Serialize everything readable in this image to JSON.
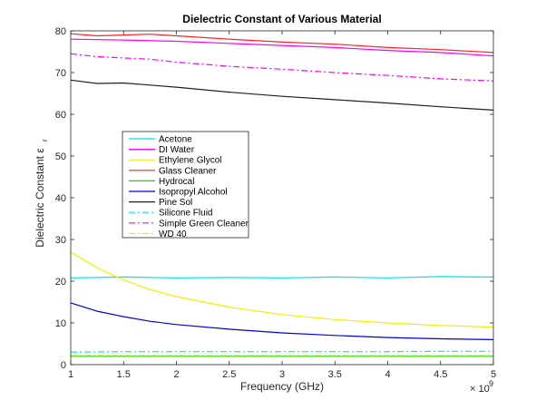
{
  "chart_data": {
    "type": "line",
    "title": "Dielectric Constant of Various Material",
    "xlabel": "Frequency (GHz)",
    "ylabel": "Dielectric Constant ε",
    "ylabel_subscript": "r",
    "x_exponent_base": "× 10",
    "x_exponent_power": "9",
    "xlim": [
      1,
      5
    ],
    "ylim": [
      0,
      80
    ],
    "xticks": [
      1,
      1.5,
      2,
      2.5,
      3,
      3.5,
      4,
      4.5,
      5
    ],
    "xtick_labels": [
      "1",
      "1.5",
      "2",
      "2.5",
      "3",
      "3.5",
      "4",
      "4.5",
      "5"
    ],
    "yticks": [
      0,
      10,
      20,
      30,
      40,
      50,
      60,
      70,
      80
    ],
    "ytick_labels": [
      "0",
      "10",
      "20",
      "30",
      "40",
      "50",
      "60",
      "70",
      "80"
    ],
    "legend_position": "upper-left",
    "series": [
      {
        "name": "Acetone",
        "color": "#00e5e5",
        "dash": "solid",
        "x": [
          1,
          1.5,
          2,
          2.5,
          3,
          3.5,
          4,
          4.5,
          5
        ],
        "values": [
          20.8,
          21.0,
          20.8,
          20.9,
          20.8,
          21.0,
          20.8,
          21.1,
          21.0
        ]
      },
      {
        "name": "DI Water",
        "color": "#ff00ff",
        "dash": "solid",
        "x": [
          1,
          1.5,
          2,
          2.5,
          3,
          3.5,
          4,
          4.5,
          5
        ],
        "values": [
          78.0,
          77.8,
          77.5,
          77.0,
          76.5,
          76.0,
          75.3,
          74.8,
          74.0
        ]
      },
      {
        "name": "Ethylene Glycol",
        "color": "#f0f000",
        "dash": "solid",
        "x": [
          1,
          1.25,
          1.5,
          1.75,
          2,
          2.5,
          3,
          3.5,
          4,
          4.5,
          5
        ],
        "values": [
          27.0,
          23.2,
          20.3,
          18.0,
          16.3,
          13.8,
          12.0,
          10.8,
          10.0,
          9.4,
          9.0
        ]
      },
      {
        "name": "Glass Cleaner",
        "color": "#ff2020",
        "dash": "solid",
        "x": [
          1,
          1.25,
          1.5,
          1.75,
          2,
          2.5,
          3,
          3.5,
          4,
          4.5,
          5
        ],
        "values": [
          79.3,
          78.8,
          79.0,
          79.2,
          78.8,
          78.0,
          77.3,
          76.8,
          76.0,
          75.5,
          74.8
        ]
      },
      {
        "name": "Hydrocal",
        "color": "#00e000",
        "dash": "solid",
        "x": [
          1,
          1.5,
          2,
          2.5,
          3,
          3.5,
          4,
          4.5,
          5
        ],
        "values": [
          2.0,
          2.0,
          2.0,
          2.0,
          2.0,
          2.0,
          2.0,
          2.0,
          2.0
        ]
      },
      {
        "name": "Isopropyl Alcohol",
        "color": "#0000e0",
        "dash": "solid",
        "x": [
          1,
          1.25,
          1.5,
          1.75,
          2,
          2.5,
          3,
          3.5,
          4,
          4.5,
          5
        ],
        "values": [
          14.8,
          12.8,
          11.5,
          10.4,
          9.6,
          8.5,
          7.6,
          7.0,
          6.5,
          6.2,
          6.0
        ]
      },
      {
        "name": "Pine Sol",
        "color": "#202020",
        "dash": "solid",
        "x": [
          1,
          1.25,
          1.5,
          1.75,
          2,
          2.5,
          3,
          3.5,
          4,
          4.5,
          5
        ],
        "values": [
          68.2,
          67.4,
          67.5,
          67.0,
          66.5,
          65.3,
          64.3,
          63.5,
          62.7,
          61.8,
          61.0
        ]
      },
      {
        "name": "Silicone Fluid",
        "color": "#00e5e5",
        "dash": "dashdot",
        "x": [
          1,
          1.5,
          2,
          2.5,
          3,
          3.5,
          4,
          4.5,
          5
        ],
        "values": [
          3.0,
          3.1,
          3.1,
          3.1,
          3.1,
          3.1,
          3.1,
          3.2,
          3.2
        ]
      },
      {
        "name": "Simple Green Cleaner",
        "color": "#ff00ff",
        "dash": "dashdot",
        "x": [
          1,
          1.25,
          1.5,
          1.75,
          2,
          2.5,
          3,
          3.5,
          4,
          4.5,
          5
        ],
        "values": [
          74.5,
          73.8,
          73.5,
          73.2,
          72.5,
          71.5,
          70.8,
          70.0,
          69.3,
          68.5,
          68.0
        ]
      },
      {
        "name": "WD 40",
        "color": "#f0f000",
        "dash": "dashdot",
        "x": [
          1,
          1.5,
          2,
          2.5,
          3,
          3.5,
          4,
          4.5,
          5
        ],
        "values": [
          2.2,
          2.2,
          2.2,
          2.2,
          2.2,
          2.2,
          2.2,
          2.2,
          2.2
        ]
      }
    ]
  }
}
